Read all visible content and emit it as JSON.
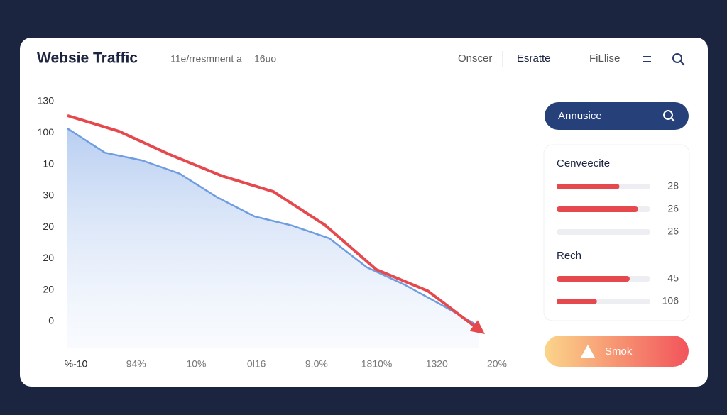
{
  "header": {
    "title": "Websie Traffic",
    "subtitle": "11e/rresmnent a",
    "meta": "16uo",
    "nav": [
      "Onscer",
      "Esratte",
      "FiLlise"
    ]
  },
  "chart_data": {
    "type": "line",
    "y_labels": [
      "130",
      "100",
      "10",
      "30",
      "20",
      "20",
      "20",
      "0"
    ],
    "x_labels": [
      "%-10",
      "94%",
      "10%",
      "0l16",
      "9.0%",
      "1810%",
      "1320",
      "20%"
    ],
    "series": [
      {
        "color": "#6f9de0",
        "fill": true,
        "values": [
          6.14,
          5.37,
          5.12,
          4.7,
          3.95,
          3.34,
          3.05,
          2.64,
          1.72,
          1.17,
          0.52,
          -0.16
        ]
      },
      {
        "color": "#e5484d",
        "arrow": true,
        "values": [
          6.55,
          6.05,
          5.3,
          4.63,
          4.13,
          3.07,
          1.65,
          0.97,
          -0.27
        ]
      }
    ]
  },
  "sidebar": {
    "search": "Annusice",
    "groups": [
      {
        "title": "Cenveecite",
        "bars": [
          {
            "fill": 67,
            "label": "28",
            "color": "#e5484d"
          },
          {
            "fill": 87,
            "label": "26",
            "color": "#e5484d"
          },
          {
            "fill": 0,
            "label": "26",
            "color": "#e5484d"
          }
        ]
      },
      {
        "title": "Rech",
        "bars": [
          {
            "fill": 78,
            "label": "45",
            "color": "#e5484d"
          },
          {
            "fill": 43,
            "label": "106",
            "color": "#e5484d"
          }
        ]
      }
    ],
    "button": "Smok"
  }
}
